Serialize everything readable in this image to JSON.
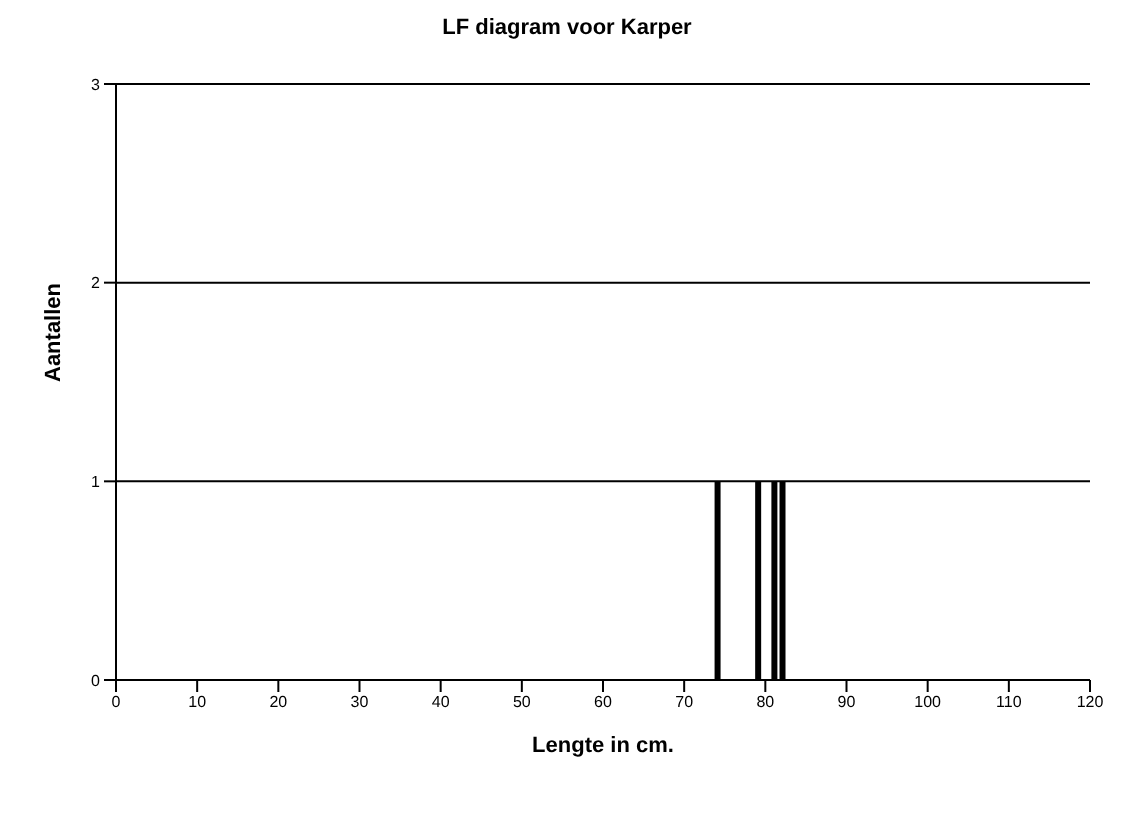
{
  "chart_data": {
    "type": "bar",
    "title": "LF diagram voor Karper",
    "xlabel": "Lengte in cm.",
    "ylabel": "Aantallen",
    "x": [
      74,
      79,
      81,
      82
    ],
    "values": [
      1,
      1,
      1,
      1
    ],
    "color": "#000000",
    "xlim": [
      0,
      120
    ],
    "xticks": [
      0,
      10,
      20,
      30,
      40,
      50,
      60,
      70,
      80,
      90,
      100,
      110,
      120
    ],
    "ylim": [
      0,
      3
    ],
    "yticks": [
      0,
      1,
      2,
      3
    ],
    "grid": "y",
    "legend": false
  }
}
